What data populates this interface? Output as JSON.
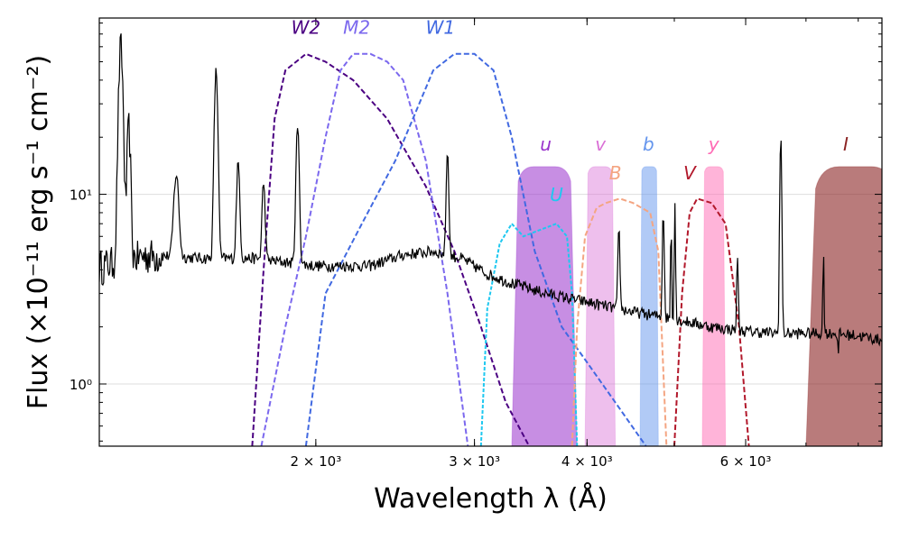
{
  "chart_data": {
    "type": "line",
    "title": "",
    "xlabel": "Wavelength λ (Å)",
    "ylabel": "Flux (×10⁻¹¹ erg s⁻¹ cm⁻²)",
    "xscale": "log",
    "yscale": "log",
    "xlim": [
      1150,
      8500
    ],
    "ylim": [
      0.47,
      85
    ],
    "grid": "horizontal major",
    "x_ticks": [
      {
        "value": 2000,
        "label": "2 × 10³"
      },
      {
        "value": 3000,
        "label": "3 × 10³"
      },
      {
        "value": 4000,
        "label": "4 × 10³"
      },
      {
        "value": 6000,
        "label": "6 × 10³"
      }
    ],
    "y_ticks": [
      {
        "value": 1,
        "label": "10⁰"
      },
      {
        "value": 10,
        "label": "10¹"
      }
    ],
    "spectrum": {
      "name": "spectrum",
      "color": "#000000",
      "continuum": [
        [
          1150,
          4.2
        ],
        [
          1300,
          4.8
        ],
        [
          1500,
          4.6
        ],
        [
          1700,
          4.6
        ],
        [
          2000,
          4.2
        ],
        [
          2300,
          4.2
        ],
        [
          2500,
          4.8
        ],
        [
          2700,
          5.0
        ],
        [
          2900,
          4.6
        ],
        [
          3100,
          3.8
        ],
        [
          3300,
          3.4
        ],
        [
          3600,
          3.0
        ],
        [
          4000,
          2.7
        ],
        [
          4500,
          2.4
        ],
        [
          5000,
          2.2
        ],
        [
          5500,
          2.0
        ],
        [
          6000,
          1.9
        ],
        [
          6500,
          1.85
        ],
        [
          7000,
          1.85
        ],
        [
          7500,
          1.85
        ],
        [
          8000,
          1.8
        ],
        [
          8500,
          1.7
        ]
      ],
      "lines": [
        [
          1215,
          55,
          6
        ],
        [
          1240,
          18,
          5
        ],
        [
          1400,
          8,
          8
        ],
        [
          1550,
          40,
          6
        ],
        [
          1640,
          10,
          6
        ],
        [
          1750,
          7,
          6
        ],
        [
          1909,
          18,
          7
        ],
        [
          2800,
          12,
          8
        ],
        [
          4340,
          4,
          10
        ],
        [
          4861,
          6,
          10
        ],
        [
          4959,
          5,
          6
        ],
        [
          5007,
          7,
          7
        ],
        [
          5876,
          3,
          10
        ],
        [
          6563,
          18,
          14
        ],
        [
          7320,
          3,
          10
        ]
      ],
      "absorptions": [
        [
          7600,
          0.6,
          6
        ]
      ]
    },
    "filter_curves": [
      {
        "name": "W2",
        "color": "#4b0082",
        "style": "dashed",
        "points": [
          [
            1700,
            0.45
          ],
          [
            1750,
            4
          ],
          [
            1800,
            25
          ],
          [
            1850,
            45
          ],
          [
            1950,
            55
          ],
          [
            2050,
            50
          ],
          [
            2200,
            40
          ],
          [
            2400,
            25
          ],
          [
            2650,
            11
          ],
          [
            2850,
            5
          ],
          [
            3050,
            2
          ],
          [
            3250,
            0.8
          ],
          [
            3450,
            0.45
          ]
        ]
      },
      {
        "name": "M2",
        "color": "#7b68ee",
        "style": "dashed",
        "points": [
          [
            1740,
            0.45
          ],
          [
            1850,
            2
          ],
          [
            1950,
            6
          ],
          [
            2050,
            20
          ],
          [
            2130,
            45
          ],
          [
            2200,
            55
          ],
          [
            2300,
            55
          ],
          [
            2400,
            50
          ],
          [
            2500,
            40
          ],
          [
            2650,
            15
          ],
          [
            2800,
            3
          ],
          [
            2950,
            0.45
          ]
        ]
      },
      {
        "name": "W1",
        "color": "#4169e1",
        "style": "dashed",
        "points": [
          [
            1950,
            0.45
          ],
          [
            2050,
            3
          ],
          [
            2250,
            7
          ],
          [
            2450,
            15
          ],
          [
            2700,
            45
          ],
          [
            2850,
            55
          ],
          [
            3000,
            55
          ],
          [
            3150,
            45
          ],
          [
            3300,
            20
          ],
          [
            3500,
            5
          ],
          [
            3750,
            2
          ],
          [
            4000,
            1.3
          ],
          [
            4300,
            0.8
          ],
          [
            4650,
            0.45
          ]
        ]
      },
      {
        "name": "U",
        "color": "#1ec8f0",
        "style": "dotted",
        "points": [
          [
            3050,
            0.45
          ],
          [
            3100,
            2.5
          ],
          [
            3200,
            5.5
          ],
          [
            3300,
            7
          ],
          [
            3400,
            6
          ],
          [
            3550,
            6.5
          ],
          [
            3700,
            7
          ],
          [
            3800,
            6
          ],
          [
            3850,
            3
          ],
          [
            3900,
            0.45
          ]
        ]
      },
      {
        "name": "B",
        "color": "#f4a582",
        "style": "dashed",
        "points": [
          [
            3850,
            0.45
          ],
          [
            3900,
            2
          ],
          [
            3980,
            6
          ],
          [
            4100,
            8.5
          ],
          [
            4200,
            9
          ],
          [
            4350,
            9.5
          ],
          [
            4500,
            9
          ],
          [
            4700,
            8
          ],
          [
            4800,
            5
          ],
          [
            4900,
            0.45
          ]
        ]
      },
      {
        "name": "V",
        "color": "#b2182b",
        "style": "dashed",
        "points": [
          [
            5000,
            0.45
          ],
          [
            5100,
            3
          ],
          [
            5200,
            8
          ],
          [
            5300,
            9.5
          ],
          [
            5500,
            9
          ],
          [
            5700,
            7
          ],
          [
            5900,
            2
          ],
          [
            6050,
            0.45
          ]
        ]
      }
    ],
    "filter_bands": [
      {
        "name": "u",
        "color": "#9932cc",
        "opacity": 0.55,
        "min": 3300,
        "max": 3900,
        "peak": 14
      },
      {
        "name": "v",
        "color": "#da70d6",
        "opacity": 0.45,
        "min": 3980,
        "max": 4300,
        "peak": 14
      },
      {
        "name": "b",
        "color": "#6495ed",
        "opacity": 0.5,
        "min": 4580,
        "max": 4800,
        "peak": 14
      },
      {
        "name": "y",
        "color": "#ff69b4",
        "opacity": 0.5,
        "min": 5370,
        "max": 5700,
        "peak": 14
      },
      {
        "name": "I",
        "color": "#8b2323",
        "opacity": 0.6,
        "min": 7000,
        "max": 9000,
        "peak": 14
      }
    ],
    "labels": [
      {
        "text": "W2",
        "color": "#4b0082",
        "x": 1950,
        "y": 70
      },
      {
        "text": "M2",
        "color": "#7b68ee",
        "x": 2220,
        "y": 70
      },
      {
        "text": "W1",
        "color": "#4169e1",
        "x": 2750,
        "y": 70
      },
      {
        "text": "u",
        "color": "#9932cc",
        "x": 3600,
        "y": 17
      },
      {
        "text": "v",
        "color": "#da70d6",
        "x": 4140,
        "y": 17
      },
      {
        "text": "b",
        "color": "#6495ed",
        "x": 4680,
        "y": 17
      },
      {
        "text": "y",
        "color": "#ff69b4",
        "x": 5530,
        "y": 17
      },
      {
        "text": "I",
        "color": "#8b2323",
        "x": 7750,
        "y": 17
      },
      {
        "text": "B",
        "color": "#f4a582",
        "x": 4300,
        "y": 12
      },
      {
        "text": "U",
        "color": "#1ec8f0",
        "x": 3700,
        "y": 9.2
      },
      {
        "text": "V",
        "color": "#b2182b",
        "x": 5200,
        "y": 12
      }
    ]
  }
}
